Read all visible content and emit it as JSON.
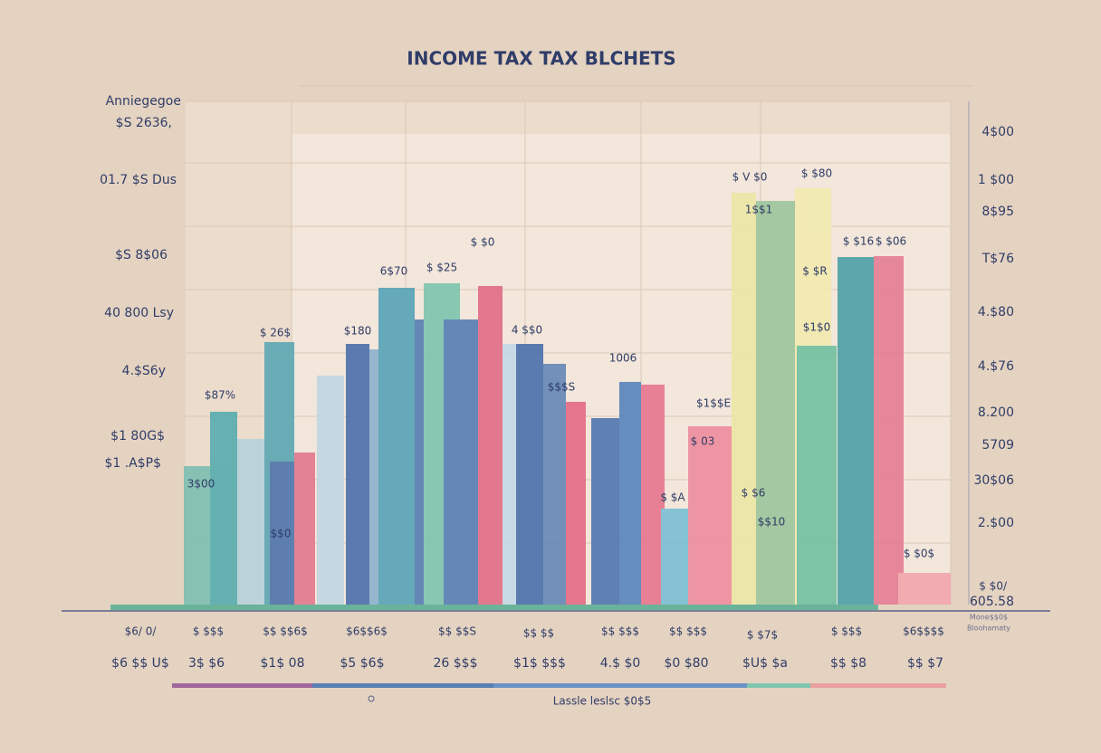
{
  "header": {
    "title": "INCOME TAX TAX BLCHETS"
  },
  "left_labels": [
    "Anniegegoe",
    "$S 2636,",
    "01.7 $S Dus",
    "$S 8$06",
    "40 800 Lsy",
    "4.$S6y",
    "$1 80G$",
    "$1 .A$P$"
  ],
  "right_labels": [
    "4$00",
    "1 $00",
    "8$95",
    "T$76",
    "4.$80",
    "4.$76",
    "8.200",
    "5709",
    "30$06",
    "2.$00",
    "$ $0/",
    "605.58"
  ],
  "bar_labels": [
    "$87%",
    "3$00",
    "$ 26$",
    "$180",
    "$$0",
    "6$70",
    "$ $25",
    "4 $$0",
    "$$$S",
    "1006",
    "$1$$E",
    "$ 03",
    "$ $A",
    "$ V $0",
    "1$$1",
    "$ $80",
    "$ $R",
    "$1$0",
    "$ $16",
    "$ $06",
    "$ $6",
    "$$10",
    "$ $0$",
    "$ $0"
  ],
  "bottom_top": [
    "$6/ 0/",
    "$ $$$",
    "$$ $$6$",
    "$6$$6$",
    "$$ $$S",
    "$$ $$",
    "$$ $$$",
    "$$ $$$",
    "$ $7$",
    "$ $$$",
    "$6$$$$"
  ],
  "bottom_bottom": [
    "$6 $$ U$",
    "3$ $6",
    "$1$ 08",
    "$5 $6$",
    "26 $$$",
    "$1$ $$$",
    "4.$ $0",
    "$0 $80",
    "$U$ $a",
    "$$ $8",
    "$$ $7"
  ],
  "right_footnote": [
    "Mone$$0$",
    "Bloohamaty"
  ],
  "legend": "Lassle leslsc $0$5"
}
